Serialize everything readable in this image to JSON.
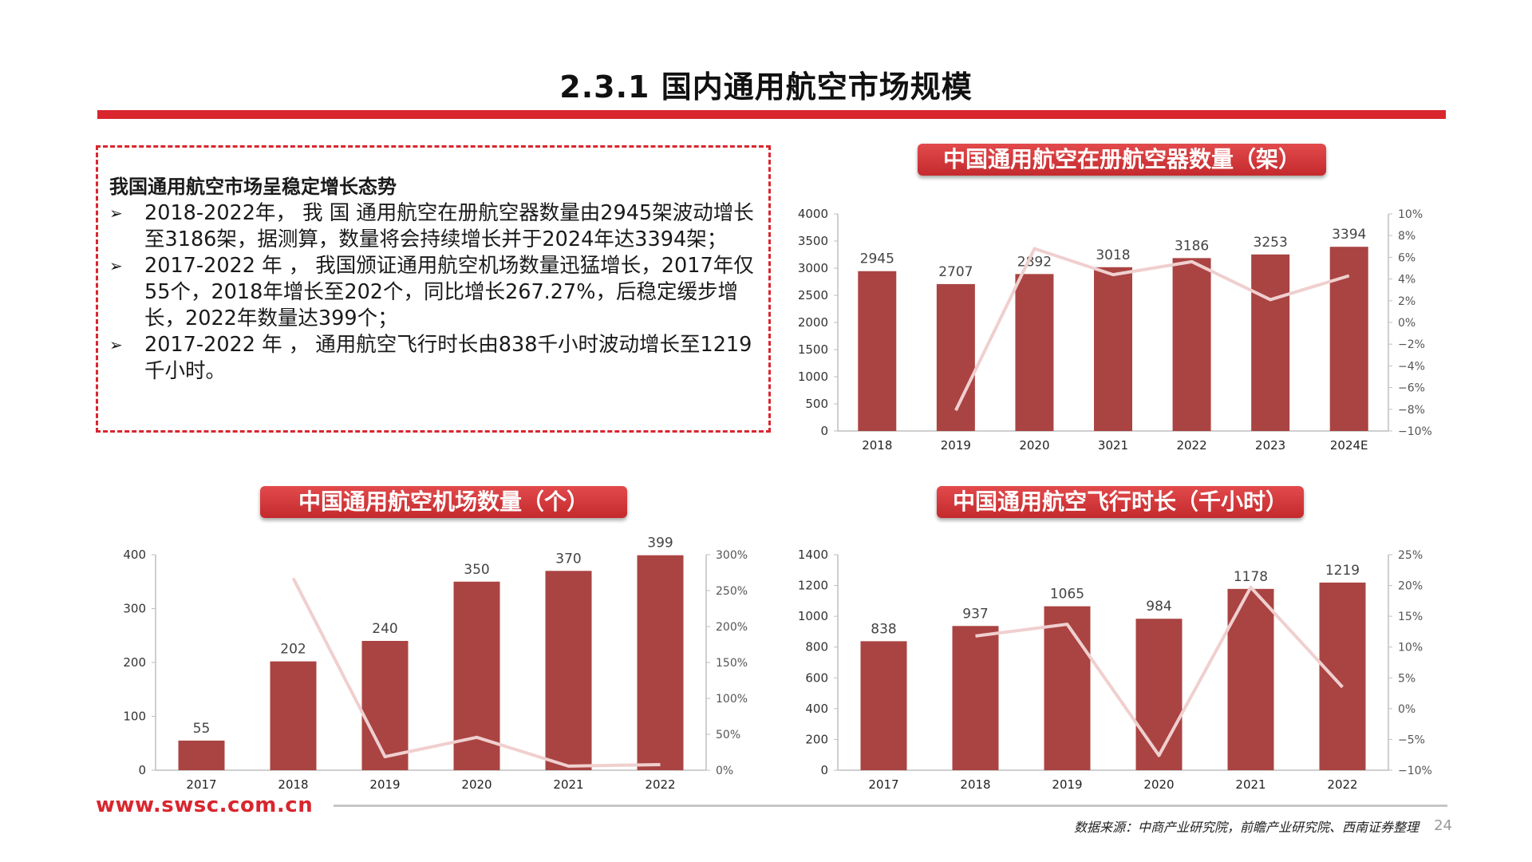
{
  "page": {
    "title": "2.3.1 国内通用航空市场规模",
    "footer_url": "www.swsc.com.cn",
    "source": "数据来源：中商产业研究院，前瞻产业研究院、西南证券整理",
    "page_number": "24",
    "accent_color": "#d9262e"
  },
  "textbox": {
    "heading": "我国通用航空市场呈稳定增长态势",
    "bullet_icon": "arrow-bullet-icon",
    "bullets": [
      "2018-2022年， 我 国 通用航空在册航空器数量由2945架波动增长至3186架，据测算，数量将会持续增长并于2024年达3394架；",
      "2017-2022 年 ， 我国颁证通用航空机场数量迅猛增长，2017年仅55个，2018年增长至202个，同比增长267.27%，后稳定缓步增长，2022年数量达399个；",
      "2017-2022  年   ，  通用航空飞行时长由838千小时波动增长至1219千小时。"
    ]
  },
  "chart_data": [
    {
      "type": "bar",
      "title": "中国通用航空在册航空器数量（架）",
      "categories": [
        "2018",
        "2019",
        "2020",
        "3021",
        "2022",
        "2023",
        "2024E"
      ],
      "values": [
        2945,
        2707,
        2892,
        3018,
        3186,
        3253,
        3394
      ],
      "line_series": [
        null,
        -8.1,
        6.8,
        4.4,
        5.6,
        2.1,
        4.3
      ],
      "y_ticks": [
        "0",
        "500",
        "1000",
        "1500",
        "2000",
        "2500",
        "3000",
        "3500",
        "4000"
      ],
      "y2_ticks": [
        "−10%",
        "−8%",
        "−6%",
        "−4%",
        "−2%",
        "0%",
        "2%",
        "4%",
        "6%",
        "8%",
        "10%"
      ],
      "ylim": [
        0,
        4000
      ],
      "y2lim": [
        -10,
        10
      ],
      "bar_color": "#a94442",
      "line_color": "#f0cfcf",
      "grid": false
    },
    {
      "type": "bar",
      "title": "中国通用航空机场数量（个）",
      "categories": [
        "2017",
        "2018",
        "2019",
        "2020",
        "2021",
        "2022"
      ],
      "values": [
        55,
        202,
        240,
        350,
        370,
        399
      ],
      "line_series": [
        null,
        267.27,
        18.8,
        45.8,
        5.7,
        7.8
      ],
      "y_ticks": [
        "0",
        "100",
        "200",
        "300",
        "400"
      ],
      "y2_ticks": [
        "0%",
        "50%",
        "100%",
        "150%",
        "200%",
        "250%",
        "300%"
      ],
      "ylim": [
        0,
        400
      ],
      "y2lim": [
        0,
        300
      ],
      "bar_color": "#a94442",
      "line_color": "#f0cfcf",
      "grid": false
    },
    {
      "type": "bar",
      "title": "中国通用航空飞行时长（千小时）",
      "categories": [
        "2017",
        "2018",
        "2019",
        "2020",
        "2021",
        "2022"
      ],
      "values": [
        838,
        937,
        1065,
        984,
        1178,
        1219
      ],
      "line_series": [
        null,
        11.8,
        13.7,
        -7.6,
        19.7,
        3.5
      ],
      "y_ticks": [
        "0",
        "200",
        "400",
        "600",
        "800",
        "1000",
        "1200",
        "1400"
      ],
      "y2_ticks": [
        "−10%",
        "−5%",
        "0%",
        "5%",
        "10%",
        "15%",
        "20%",
        "25%"
      ],
      "ylim": [
        0,
        1400
      ],
      "y2lim": [
        -10,
        25
      ],
      "bar_color": "#a94442",
      "line_color": "#f0cfcf",
      "grid": false
    }
  ]
}
